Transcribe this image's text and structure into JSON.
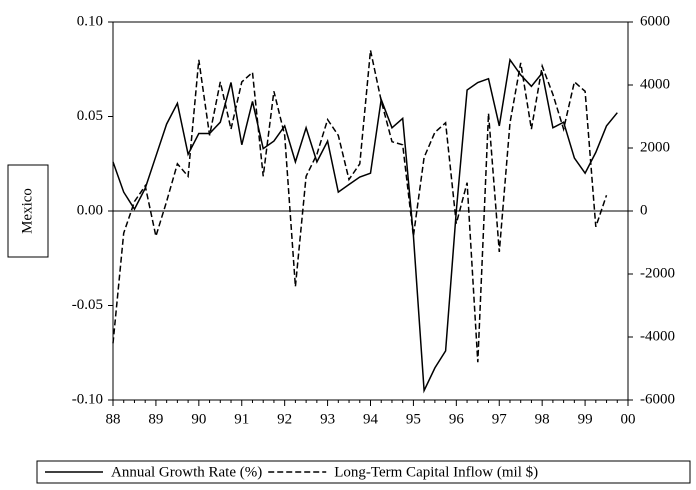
{
  "chart_data": {
    "type": "line",
    "y_label": "Mexico",
    "x": [
      88,
      88.25,
      88.5,
      88.75,
      89,
      89.25,
      89.5,
      89.75,
      90,
      90.25,
      90.5,
      90.75,
      91,
      91.25,
      91.5,
      91.75,
      92,
      92.25,
      92.5,
      92.75,
      93,
      93.25,
      93.5,
      93.75,
      94,
      94.25,
      94.5,
      94.75,
      95,
      95.25,
      95.5,
      95.75,
      96,
      96.25,
      96.5,
      96.75,
      97,
      97.25,
      97.5,
      97.75,
      98,
      98.25,
      98.5,
      98.75,
      99,
      99.25,
      99.5,
      99.75
    ],
    "series": [
      {
        "name": "Annual Growth Rate (%)",
        "color": "#000000",
        "dash": "solid",
        "values": [
          0.026,
          0.01,
          0.001,
          0.012,
          0.029,
          0.046,
          0.057,
          0.03,
          0.041,
          0.041,
          0.047,
          0.068,
          0.035,
          0.058,
          0.033,
          0.037,
          0.045,
          0.026,
          0.044,
          0.026,
          0.037,
          0.01,
          0.014,
          0.018,
          0.02,
          0.059,
          0.044,
          0.049,
          -0.013,
          -0.095,
          -0.083,
          -0.074,
          0.0,
          0.064,
          0.068,
          0.07,
          0.045,
          0.08,
          0.072,
          0.066,
          0.073,
          0.044,
          0.047,
          0.028,
          0.02,
          0.031,
          0.045,
          0.052
        ]
      },
      {
        "name": "Long-Term Capital Inflow (mil $)",
        "color": "#000000",
        "dash": "dashed",
        "axis": "y2",
        "values": [
          -4200,
          -700,
          300,
          800,
          -800,
          300,
          1500,
          1100,
          4800,
          2400,
          4100,
          2600,
          4100,
          4400,
          1100,
          3800,
          2400,
          -2400,
          1100,
          1800,
          2900,
          2400,
          1000,
          1500,
          5100,
          3500,
          2200,
          2100,
          -800,
          1700,
          2500,
          2800,
          -400,
          900,
          -4800,
          3100,
          -1300,
          2800,
          4700,
          2600,
          4600,
          3700,
          2600,
          4100,
          3800,
          -500,
          500,
          null
        ]
      }
    ],
    "xlim": [
      88,
      100
    ],
    "xticks": [
      88,
      89,
      90,
      91,
      92,
      93,
      94,
      95,
      96,
      97,
      98,
      99,
      {
        "value": 100,
        "label": "00"
      }
    ],
    "ylim": [
      -0.1,
      0.1
    ],
    "yticks": [
      {
        "value": 0.1,
        "label": "0.10"
      },
      {
        "value": 0.05,
        "label": "0.05"
      },
      {
        "value": 0,
        "label": "0.00"
      },
      {
        "value": -0.05,
        "label": "-0.05"
      },
      {
        "value": -0.1,
        "label": "-0.10"
      }
    ],
    "y2lim": [
      -6000,
      6000
    ],
    "y2ticks": [
      6000,
      4000,
      2000,
      0,
      -2000,
      -4000,
      -6000
    ],
    "zero_line": true
  }
}
